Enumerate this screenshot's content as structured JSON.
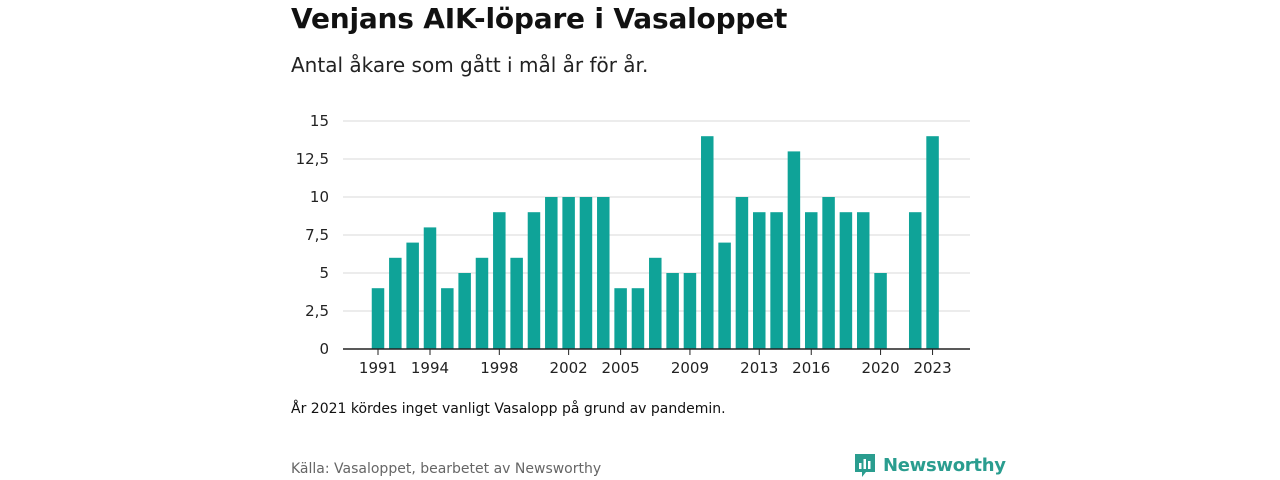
{
  "header": {
    "title": "Venjans AIK-löpare i Vasaloppet",
    "subtitle": "Antal åkare som gått i mål år för år."
  },
  "footer": {
    "note": "År 2021 kördes inget vanligt Vasalopp på grund av pandemin.",
    "source": "Källa: Vasaloppet, bearbetet av Newsworthy",
    "logo_text": "Newsworthy",
    "logo_icon": "newsworthy-bar-chart-icon"
  },
  "colors": {
    "bar": "#0fa398",
    "grid": "#d9d9d9",
    "axis": "#222222",
    "logo": "#2a9d8f"
  },
  "chart_data": {
    "type": "bar",
    "x": [
      1991,
      1992,
      1993,
      1994,
      1995,
      1996,
      1997,
      1998,
      1999,
      2000,
      2001,
      2002,
      2003,
      2004,
      2005,
      2006,
      2007,
      2008,
      2009,
      2010,
      2011,
      2012,
      2013,
      2014,
      2015,
      2016,
      2017,
      2018,
      2019,
      2020,
      2021,
      2022,
      2023
    ],
    "values": [
      4,
      6,
      7,
      8,
      4,
      5,
      6,
      9,
      6,
      9,
      10,
      10,
      10,
      10,
      4,
      4,
      6,
      5,
      5,
      14,
      7,
      10,
      9,
      9,
      13,
      9,
      10,
      9,
      9,
      5,
      null,
      9,
      14
    ],
    "xtick_labels": [
      "1991",
      "1994",
      "1998",
      "2002",
      "2005",
      "2009",
      "2013",
      "2016",
      "2020",
      "2023"
    ],
    "xtick_values": [
      1991,
      1994,
      1998,
      2002,
      2005,
      2009,
      2013,
      2016,
      2020,
      2023
    ],
    "ytick_labels": [
      "0",
      "2,5",
      "5",
      "7,5",
      "10",
      "12,5",
      "15"
    ],
    "ytick_values": [
      0,
      2.5,
      5,
      7.5,
      10,
      12.5,
      15
    ],
    "ylim": [
      0,
      15
    ],
    "grid": true,
    "xlabel": "",
    "ylabel": ""
  }
}
